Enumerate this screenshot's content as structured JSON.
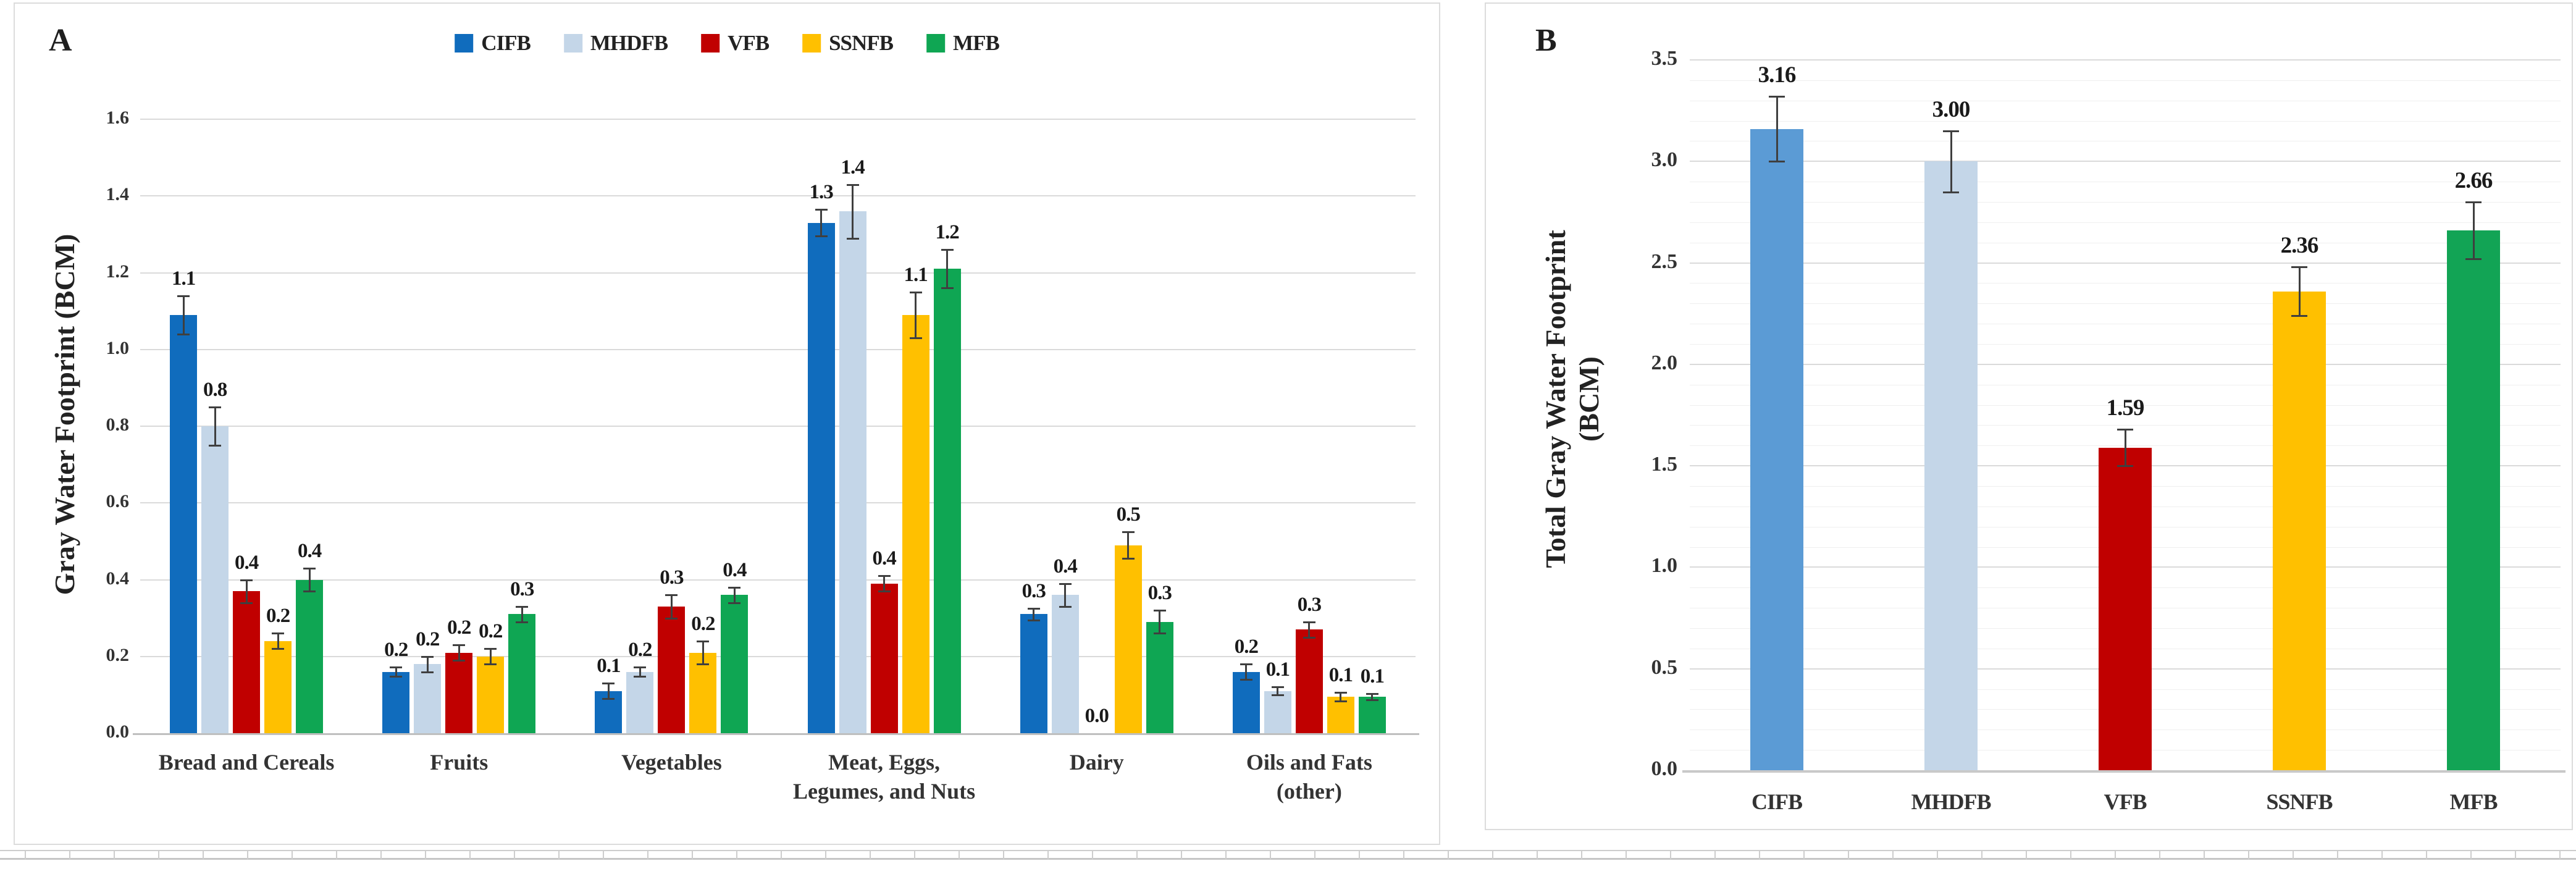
{
  "figure": {
    "panel_a": {
      "letter": "A",
      "y_axis_title": "Gray Water Footprint (BCM)"
    },
    "panel_b": {
      "letter": "B",
      "y_axis_title_lines": [
        "Total Gray Water Footprint",
        "(BCM)"
      ]
    }
  },
  "chart_data": [
    {
      "id": "A",
      "type": "bar",
      "subtype": "grouped-vertical-with-error-bars",
      "ylabel": "Gray Water Footprint (BCM)",
      "ylim": [
        0,
        1.6
      ],
      "ytick_step": 0.2,
      "yticks": [
        "0.0",
        "0.2",
        "0.4",
        "0.6",
        "0.8",
        "1.0",
        "1.2",
        "1.4",
        "1.6"
      ],
      "grid": "major-horizontal",
      "legend_position": "top-center",
      "categories": [
        [
          "Bread and Cereals"
        ],
        [
          "Fruits"
        ],
        [
          "Vegetables"
        ],
        [
          "Meat, Eggs,",
          "Legumes, and Nuts"
        ],
        [
          "Dairy"
        ],
        [
          "Oils and Fats",
          "(other)"
        ]
      ],
      "series": [
        {
          "name": "CIFB",
          "color": "#106cbd",
          "values": [
            1.09,
            0.16,
            0.11,
            1.33,
            0.31,
            0.16
          ],
          "labels": [
            "1.1",
            "0.2",
            "0.1",
            "1.3",
            "0.3",
            "0.2"
          ],
          "errors": [
            0.05,
            0.012,
            0.02,
            0.035,
            0.015,
            0.02
          ]
        },
        {
          "name": "MHDFB",
          "color": "#c4d6e8",
          "values": [
            0.8,
            0.18,
            0.16,
            1.36,
            0.36,
            0.11
          ],
          "labels": [
            "0.8",
            "0.2",
            "0.2",
            "1.4",
            "0.4",
            "0.1"
          ],
          "errors": [
            0.05,
            0.02,
            0.012,
            0.07,
            0.03,
            0.01
          ]
        },
        {
          "name": "VFB",
          "color": "#c00000",
          "values": [
            0.37,
            0.21,
            0.33,
            0.39,
            0.0,
            0.27
          ],
          "labels": [
            "0.4",
            "0.2",
            "0.3",
            "0.4",
            "0.0",
            "0.3"
          ],
          "errors": [
            0.03,
            0.02,
            0.03,
            0.02,
            0,
            0.02
          ]
        },
        {
          "name": "SSNFB",
          "color": "#ffc000",
          "values": [
            0.24,
            0.2,
            0.21,
            1.09,
            0.49,
            0.095
          ],
          "labels": [
            "0.2",
            "0.2",
            "0.2",
            "1.1",
            "0.5",
            "0.1"
          ],
          "errors": [
            0.02,
            0.02,
            0.03,
            0.06,
            0.035,
            0.012
          ]
        },
        {
          "name": "MFB",
          "color": "#0fa653",
          "values": [
            0.4,
            0.31,
            0.36,
            1.21,
            0.29,
            0.095
          ],
          "labels": [
            "0.4",
            "0.3",
            "0.4",
            "1.2",
            "0.3",
            "0.1"
          ],
          "errors": [
            0.03,
            0.02,
            0.02,
            0.05,
            0.03,
            0.008
          ]
        }
      ]
    },
    {
      "id": "B",
      "type": "bar",
      "subtype": "vertical-with-error-bars",
      "ylabel": "Total Gray Water Footprint (BCM)",
      "ylim": [
        0,
        3.5
      ],
      "ytick_step": 0.5,
      "yticks": [
        "0.0",
        "0.5",
        "1.0",
        "1.5",
        "2.0",
        "2.5",
        "3.0",
        "3.5"
      ],
      "grid": "major-and-minor-horizontal",
      "minor_step": 0.1,
      "categories": [
        "CIFB",
        "MHDFB",
        "VFB",
        "SSNFB",
        "MFB"
      ],
      "values": [
        3.16,
        3.0,
        1.59,
        2.36,
        2.66
      ],
      "labels": [
        "3.16",
        "3.00",
        "1.59",
        "2.36",
        "2.66"
      ],
      "errors": [
        0.16,
        0.15,
        0.09,
        0.12,
        0.14
      ],
      "colors": [
        "#5b9bd5",
        "#c4d6e8",
        "#c00000",
        "#ffc000",
        "#12a455"
      ]
    }
  ]
}
